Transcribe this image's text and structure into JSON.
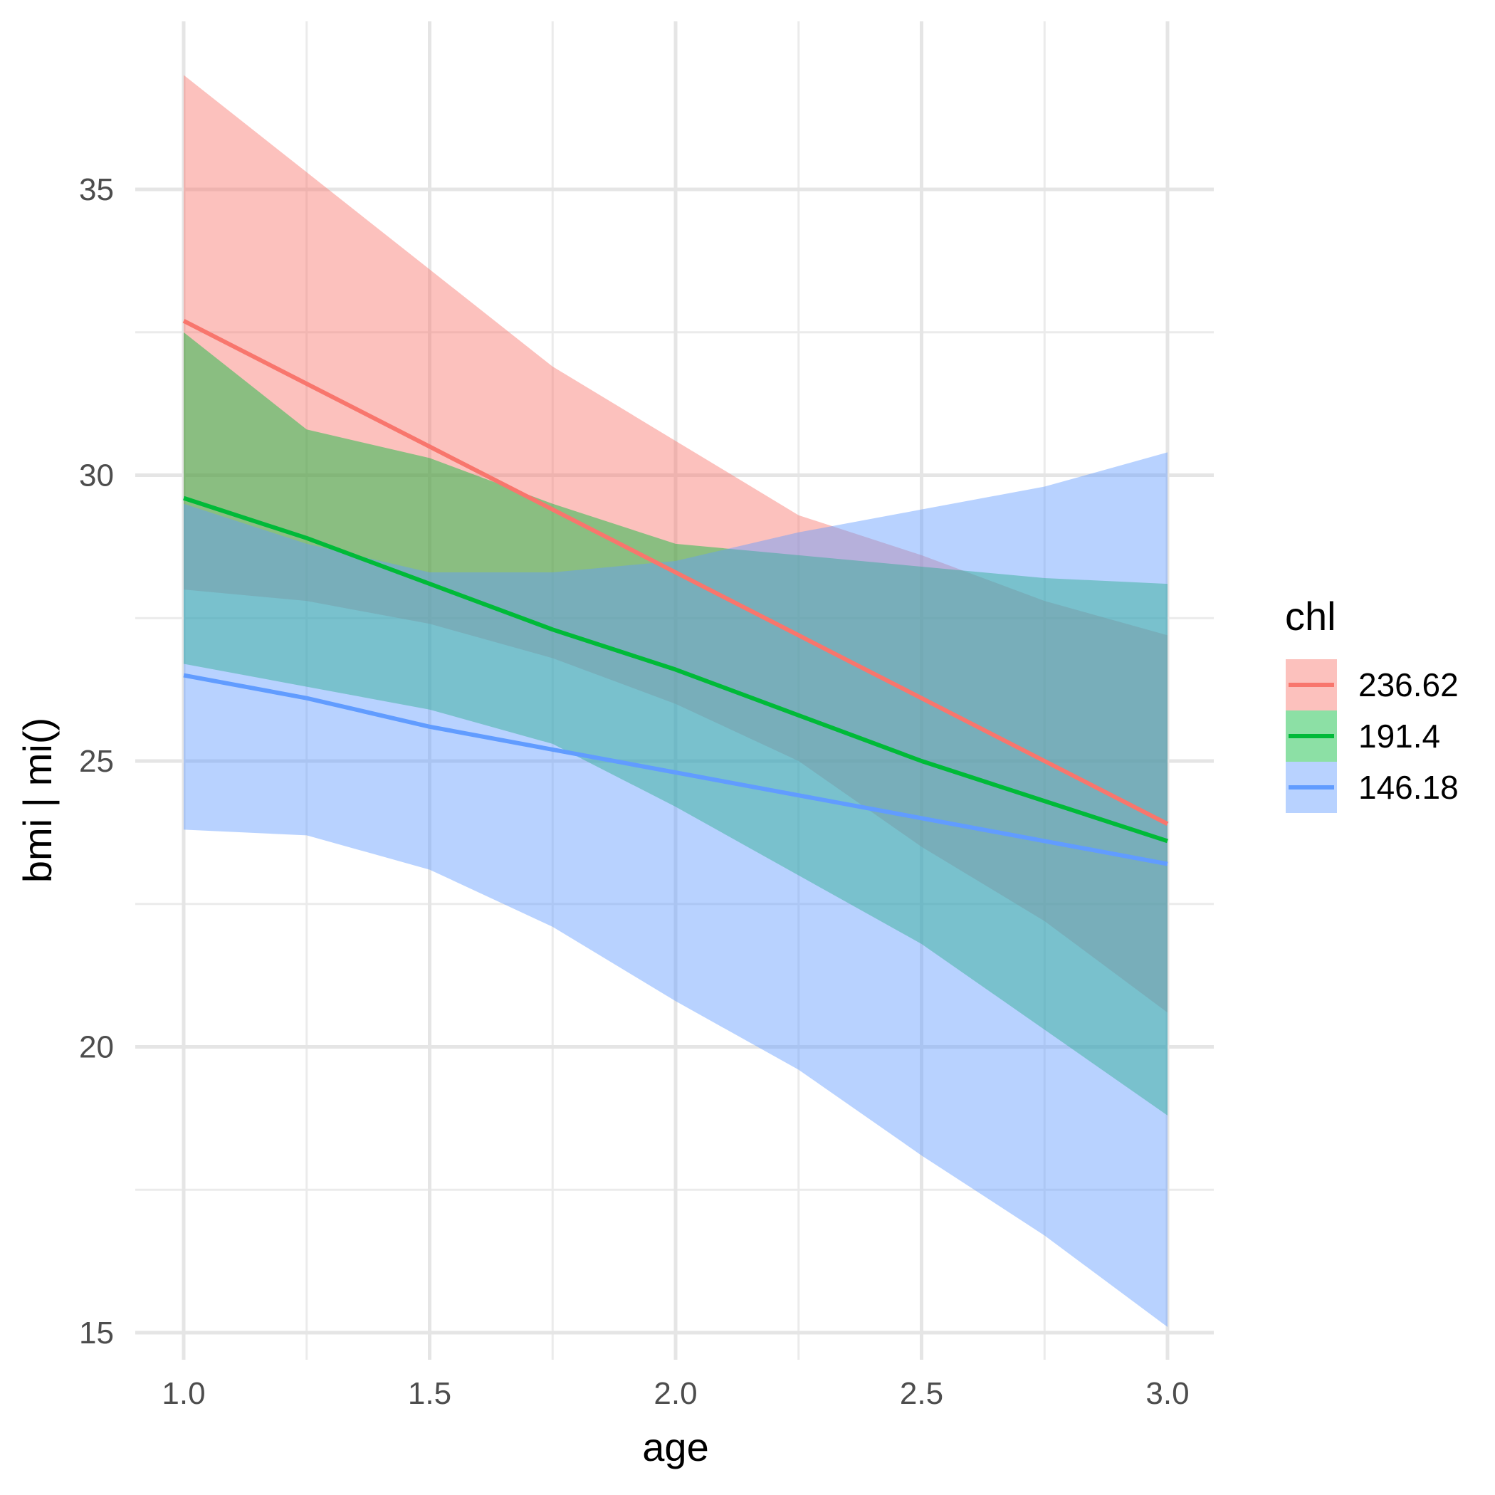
{
  "chart_data": {
    "type": "line",
    "title": "",
    "xlabel": "age",
    "ylabel": "bmi | mi()",
    "xlim": [
      0.9,
      3.1
    ],
    "ylim": [
      14.3,
      37.5
    ],
    "x_ticks": [
      1.0,
      1.5,
      2.0,
      2.5,
      3.0
    ],
    "x_tick_labels": [
      "1.0",
      "1.5",
      "2.0",
      "2.5",
      "3.0"
    ],
    "x_minor_ticks": [
      1.25,
      1.75,
      2.25,
      2.75
    ],
    "y_ticks": [
      15,
      20,
      25,
      30,
      35
    ],
    "y_tick_labels": [
      "15",
      "20",
      "25",
      "30",
      "35"
    ],
    "y_minor_ticks": [
      17.5,
      22.5,
      27.5,
      32.5
    ],
    "grid": true,
    "legend": {
      "title": "chl",
      "position": "right"
    },
    "x": [
      1.0,
      1.25,
      1.5,
      1.75,
      2.0,
      2.25,
      2.5,
      2.75,
      3.0
    ],
    "series": [
      {
        "name": "236.62",
        "color": "#F8766D",
        "values": [
          32.7,
          31.6,
          30.5,
          29.4,
          28.3,
          27.2,
          26.1,
          25.0,
          23.9
        ],
        "lower": [
          28.0,
          27.8,
          27.4,
          26.8,
          26.0,
          25.0,
          23.5,
          22.2,
          20.6
        ],
        "upper": [
          37.0,
          35.3,
          33.6,
          31.9,
          30.6,
          29.3,
          28.6,
          27.8,
          27.2
        ]
      },
      {
        "name": "191.4",
        "color": "#00BA38",
        "values": [
          29.6,
          28.9,
          28.1,
          27.3,
          26.6,
          25.8,
          25.0,
          24.3,
          23.6
        ],
        "lower": [
          26.7,
          26.3,
          25.9,
          25.3,
          24.2,
          23.0,
          21.8,
          20.3,
          18.8
        ],
        "upper": [
          32.5,
          30.8,
          30.3,
          29.5,
          28.8,
          28.6,
          28.4,
          28.2,
          28.1
        ]
      },
      {
        "name": "146.18",
        "color": "#619CFF",
        "values": [
          26.5,
          26.1,
          25.6,
          25.2,
          24.8,
          24.4,
          24.0,
          23.6,
          23.2
        ],
        "lower": [
          23.8,
          23.7,
          23.1,
          22.1,
          20.8,
          19.6,
          18.1,
          16.7,
          15.1
        ],
        "upper": [
          29.5,
          28.8,
          28.3,
          28.3,
          28.5,
          29.0,
          29.4,
          29.8,
          30.4
        ]
      }
    ]
  }
}
